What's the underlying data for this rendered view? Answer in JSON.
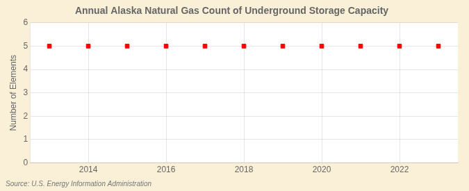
{
  "chart_data": {
    "type": "scatter",
    "title": "Annual Alaska Natural Gas Count of Underground Storage Capacity",
    "y_label": "Number of Elements",
    "annotations": [
      "Source: U.S. Energy Information Administration"
    ],
    "x": [
      2013,
      2014,
      2015,
      2016,
      2017,
      2018,
      2019,
      2020,
      2021,
      2022,
      2023
    ],
    "values": [
      5,
      5,
      5,
      5,
      5,
      5,
      5,
      5,
      5,
      5,
      5
    ],
    "color": "#FF0000",
    "marker": "square",
    "xlim": [
      2012.5,
      2023.5
    ],
    "xticks": [
      2014,
      2016,
      2018,
      2020,
      2022
    ],
    "ylim": [
      0,
      6
    ],
    "yticks": [
      0,
      1,
      2,
      3,
      4,
      5,
      6
    ],
    "grid": true
  }
}
